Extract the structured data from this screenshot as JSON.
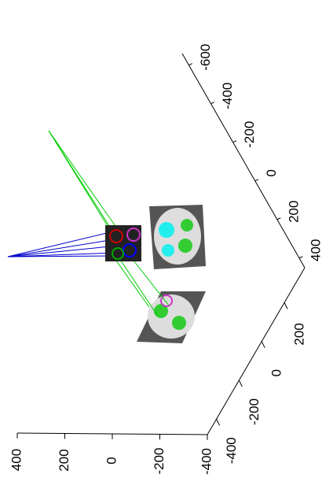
{
  "chart_data": {
    "type": "scatter3d",
    "zlim": [
      -400,
      400
    ],
    "zticks": [
      400,
      200,
      0,
      -200,
      -400
    ],
    "xlim": [
      -480,
      380
    ],
    "xticks": [
      -400,
      -200,
      0,
      200
    ],
    "ylim": [
      -660,
      450
    ],
    "yticks": [
      400,
      200,
      0,
      -200,
      -400,
      -600
    ]
  }
}
